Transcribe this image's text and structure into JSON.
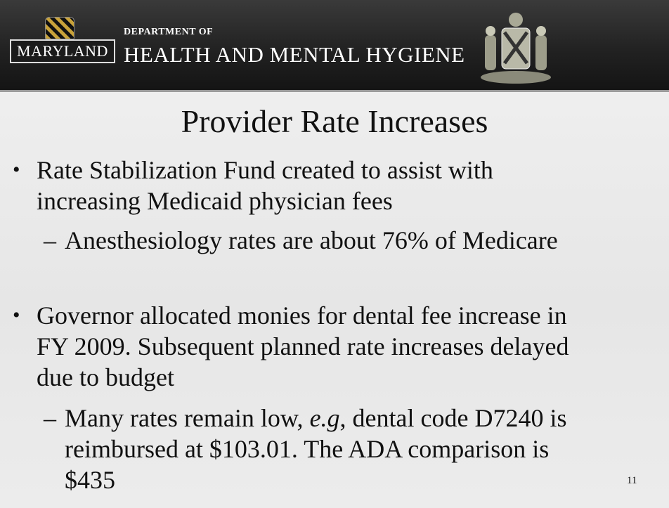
{
  "header": {
    "logo_text": "MARYLAND",
    "department": "DEPARTMENT OF",
    "agency": "HEALTH AND MENTAL HYGIENE"
  },
  "slide": {
    "title": "Provider Rate Increases",
    "bullets": [
      {
        "lines": [
          "Rate Stabilization Fund created to assist with",
          "increasing Medicaid physician fees"
        ],
        "sub": [
          [
            "Anesthesiology rates are about 76% of Medicare"
          ]
        ]
      },
      {
        "lines": [
          "Governor allocated monies for dental fee increase in",
          "FY 2009.  Subsequent planned rate increases delayed",
          "due to budget"
        ],
        "sub": [
          [
            "Many rates remain low, ",
            "e.g",
            ", dental code D7240 is"
          ],
          [
            "reimbursed at $103.01.  The ADA comparison is"
          ],
          [
            "$435"
          ]
        ]
      }
    ],
    "page_number": "11"
  }
}
